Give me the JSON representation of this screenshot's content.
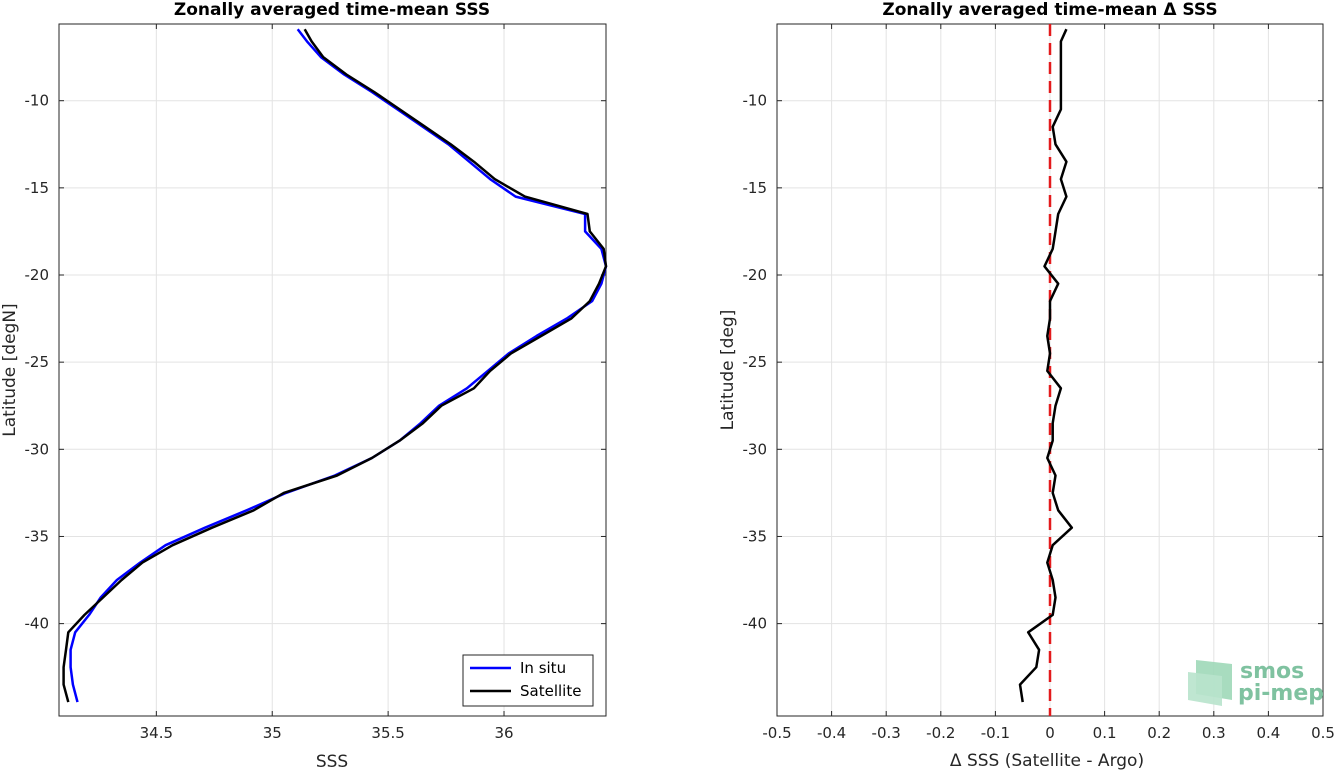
{
  "chart_data": [
    {
      "type": "line",
      "title": "Zonally averaged time-mean SSS",
      "xlabel": "SSS",
      "ylabel": "Latitude [degN]",
      "xlim": [
        34.08,
        36.44
      ],
      "ylim": [
        -45.3,
        -5.6
      ],
      "xticks": [
        34.5,
        35,
        35.5,
        36
      ],
      "xtick_labels": [
        "34.5",
        "35",
        "35.5",
        "36"
      ],
      "yticks": [
        -10,
        -15,
        -20,
        -25,
        -30,
        -35,
        -40
      ],
      "ytick_labels": [
        "-10",
        "-15",
        "-20",
        "-25",
        "-30",
        "-35",
        "-40"
      ],
      "grid": true,
      "legend_position": "bottom-right",
      "series": [
        {
          "name": "In situ",
          "color": "#0000ff",
          "lat": [
            -5.9,
            -6.6,
            -7.5,
            -8.5,
            -9.5,
            -10.5,
            -11.5,
            -12.5,
            -13.5,
            -14.5,
            -15.5,
            -16.5,
            -17.5,
            -18.5,
            -19.5,
            -20.5,
            -21.5,
            -22.5,
            -23.5,
            -24.5,
            -25.5,
            -26.5,
            -27.5,
            -28.5,
            -29.5,
            -30.5,
            -31.5,
            -32.5,
            -33.5,
            -34.5,
            -35.5,
            -36.5,
            -37.5,
            -38.5,
            -39.5,
            -40.5,
            -41.5,
            -42.5,
            -43.5,
            -44.5
          ],
          "values": [
            35.11,
            35.15,
            35.21,
            35.31,
            35.43,
            35.54,
            35.65,
            35.76,
            35.85,
            35.94,
            36.05,
            36.35,
            36.35,
            36.42,
            36.44,
            36.42,
            36.38,
            36.27,
            36.14,
            36.02,
            35.93,
            35.84,
            35.72,
            35.64,
            35.55,
            35.43,
            35.27,
            35.06,
            34.89,
            34.71,
            34.54,
            34.43,
            34.33,
            34.26,
            34.21,
            34.15,
            34.13,
            34.13,
            34.14,
            34.16
          ]
        },
        {
          "name": "Satellite",
          "color": "#000000",
          "lat": [
            -5.9,
            -6.6,
            -7.5,
            -8.5,
            -9.5,
            -10.5,
            -11.5,
            -12.5,
            -13.5,
            -14.5,
            -15.5,
            -16.5,
            -17.5,
            -18.5,
            -19.5,
            -20.5,
            -21.5,
            -22.5,
            -23.5,
            -24.5,
            -25.5,
            -26.5,
            -27.5,
            -28.5,
            -29.5,
            -30.5,
            -31.5,
            -32.5,
            -33.5,
            -34.5,
            -35.5,
            -36.5,
            -37.5,
            -38.5,
            -39.5,
            -40.5,
            -41.5,
            -42.5,
            -43.5,
            -44.5
          ],
          "values": [
            35.14,
            35.17,
            35.22,
            35.32,
            35.44,
            35.55,
            35.66,
            35.77,
            35.87,
            35.96,
            36.09,
            36.36,
            36.37,
            36.43,
            36.44,
            36.41,
            36.37,
            36.29,
            36.16,
            36.03,
            35.94,
            35.87,
            35.73,
            35.65,
            35.55,
            35.43,
            35.28,
            35.05,
            34.92,
            34.74,
            34.57,
            34.44,
            34.35,
            34.27,
            34.19,
            34.12,
            34.11,
            34.1,
            34.1,
            34.12
          ]
        }
      ]
    },
    {
      "type": "line",
      "title": "Zonally averaged time-mean Δ SSS",
      "xlabel": "Δ SSS (Satellite - Argo)",
      "ylabel": "Latitude [deg]",
      "xlim": [
        -0.5,
        0.5
      ],
      "ylim": [
        -45.3,
        -5.6
      ],
      "xticks": [
        -0.5,
        -0.4,
        -0.3,
        -0.2,
        -0.1,
        0,
        0.1,
        0.2,
        0.3,
        0.4,
        0.5
      ],
      "xtick_labels": [
        "-0.5",
        "-0.4",
        "-0.3",
        "-0.2",
        "-0.1",
        "0",
        "0.1",
        "0.2",
        "0.3",
        "0.4",
        "0.5"
      ],
      "yticks": [
        -10,
        -15,
        -20,
        -25,
        -30,
        -35,
        -40
      ],
      "ytick_labels": [
        "-10",
        "-15",
        "-20",
        "-25",
        "-30",
        "-35",
        "-40"
      ],
      "grid": true,
      "reference_line": {
        "x": 0,
        "color": "#e31a1c",
        "style": "dashed"
      },
      "series": [
        {
          "color": "#000000",
          "lat": [
            -5.9,
            -6.6,
            -7.5,
            -8.5,
            -9.5,
            -10.5,
            -11.5,
            -12.5,
            -13.5,
            -14.5,
            -15.5,
            -16.5,
            -17.5,
            -18.5,
            -19.5,
            -20.5,
            -21.5,
            -22.5,
            -23.5,
            -24.5,
            -25.5,
            -26.5,
            -27.5,
            -28.5,
            -29.5,
            -30.5,
            -31.5,
            -32.5,
            -33.5,
            -34.5,
            -35.5,
            -36.5,
            -37.5,
            -38.5,
            -39.5,
            -40.5,
            -41.5,
            -42.5,
            -43.5,
            -44.5
          ],
          "values": [
            0.03,
            0.02,
            0.02,
            0.02,
            0.02,
            0.02,
            0.005,
            0.01,
            0.03,
            0.02,
            0.03,
            0.015,
            0.01,
            0.005,
            -0.01,
            0.015,
            0.0,
            0.0,
            -0.005,
            0.0,
            -0.005,
            0.02,
            0.01,
            0.005,
            0.005,
            -0.005,
            0.01,
            0.005,
            0.015,
            0.04,
            0.005,
            -0.005,
            0.005,
            0.01,
            0.005,
            -0.04,
            -0.02,
            -0.025,
            -0.055,
            -0.05
          ]
        }
      ]
    }
  ],
  "logo": {
    "line1": "smos",
    "line2": "pi-mep"
  }
}
